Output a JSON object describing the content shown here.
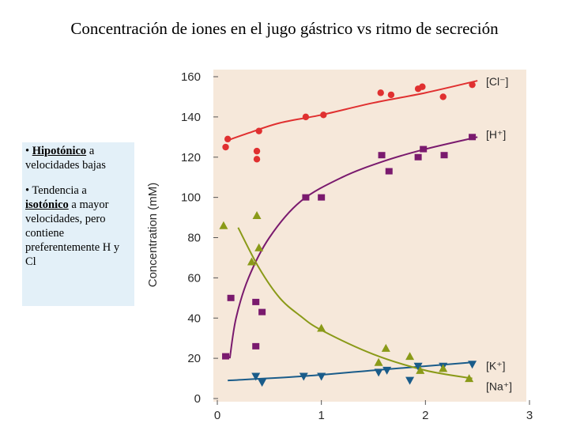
{
  "slide": {
    "title": "Concentración de iones en el jugo gástrico vs ritmo de secreción"
  },
  "note": {
    "p1_bold": "Hipotónico",
    "p1_prefix": "• ",
    "p1_rest": " a velocidades bajas",
    "p2_prefix": "• Tendencia a ",
    "p2_bold": "isotónico",
    "p2_rest": " a mayor velocidades, pero contiene preferentemente H y Cl",
    "bg_color": "#e3f0f8"
  },
  "chart_data": {
    "type": "scatter",
    "title": "",
    "xlabel": "",
    "ylabel": "Concentration (mM)",
    "xlim": [
      0,
      3
    ],
    "ylim": [
      0,
      160
    ],
    "x_ticks": [
      "0",
      "1",
      "2",
      "3"
    ],
    "y_ticks": [
      "0",
      "20",
      "40",
      "60",
      "80",
      "100",
      "120",
      "140",
      "160"
    ],
    "grid": false,
    "background_color": "#f6e8da",
    "series": [
      {
        "name": "[Cl⁻]",
        "color": "#e03030",
        "marker": "circle",
        "points": [
          [
            0.08,
            125
          ],
          [
            0.1,
            129
          ],
          [
            0.38,
            123
          ],
          [
            0.38,
            119
          ],
          [
            0.4,
            133
          ],
          [
            0.85,
            140
          ],
          [
            1.02,
            141
          ],
          [
            1.57,
            152
          ],
          [
            1.67,
            151
          ],
          [
            1.93,
            154
          ],
          [
            1.97,
            155
          ],
          [
            2.17,
            150
          ],
          [
            2.45,
            156
          ]
        ],
        "fit": [
          [
            0.08,
            128
          ],
          [
            0.3,
            132
          ],
          [
            0.6,
            137
          ],
          [
            1.0,
            141
          ],
          [
            1.5,
            147
          ],
          [
            2.0,
            152
          ],
          [
            2.5,
            158
          ]
        ]
      },
      {
        "name": "[H⁺]",
        "color": "#7a1a6e",
        "marker": "square",
        "points": [
          [
            0.08,
            21
          ],
          [
            0.13,
            50
          ],
          [
            0.37,
            48
          ],
          [
            0.37,
            26
          ],
          [
            0.43,
            43
          ],
          [
            0.85,
            100
          ],
          [
            1.0,
            100
          ],
          [
            1.58,
            121
          ],
          [
            1.65,
            113
          ],
          [
            1.93,
            120
          ],
          [
            1.98,
            124
          ],
          [
            2.18,
            121
          ],
          [
            2.45,
            130
          ]
        ],
        "fit": [
          [
            0.12,
            20
          ],
          [
            0.18,
            40
          ],
          [
            0.3,
            60
          ],
          [
            0.5,
            80
          ],
          [
            0.8,
            98
          ],
          [
            1.2,
            110
          ],
          [
            1.6,
            118
          ],
          [
            2.0,
            124
          ],
          [
            2.5,
            130
          ]
        ]
      },
      {
        "name": "[K⁺]",
        "color": "#1a5c8a",
        "marker": "triangle-down",
        "points": [
          [
            0.37,
            11
          ],
          [
            0.43,
            8
          ],
          [
            0.83,
            11
          ],
          [
            1.0,
            11
          ],
          [
            1.55,
            13
          ],
          [
            1.63,
            14
          ],
          [
            1.85,
            9
          ],
          [
            1.93,
            16
          ],
          [
            2.17,
            16
          ],
          [
            2.45,
            17
          ]
        ],
        "fit": [
          [
            0.1,
            9
          ],
          [
            0.8,
            11
          ],
          [
            1.5,
            14
          ],
          [
            2.45,
            18
          ]
        ]
      },
      {
        "name": "[Na⁺]",
        "color": "#8a9a18",
        "marker": "triangle-up",
        "points": [
          [
            0.06,
            86
          ],
          [
            0.33,
            68
          ],
          [
            0.38,
            91
          ],
          [
            0.4,
            75
          ],
          [
            1.0,
            35
          ],
          [
            1.55,
            18
          ],
          [
            1.62,
            25
          ],
          [
            1.85,
            21
          ],
          [
            1.95,
            14
          ],
          [
            2.17,
            15
          ],
          [
            2.42,
            10
          ]
        ],
        "fit": [
          [
            0.2,
            85
          ],
          [
            0.4,
            65
          ],
          [
            0.6,
            50
          ],
          [
            0.8,
            41
          ],
          [
            1.0,
            34
          ],
          [
            1.5,
            22
          ],
          [
            2.0,
            14
          ],
          [
            2.45,
            10
          ]
        ]
      }
    ]
  }
}
